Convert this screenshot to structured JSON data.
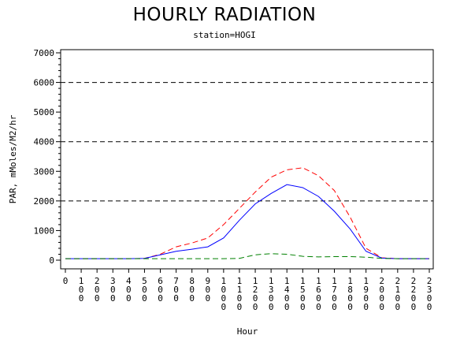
{
  "title": "HOURLY RADIATION",
  "subtitle": "station=HOGI",
  "chart_data": {
    "type": "line",
    "xlabel": "Hour",
    "ylabel": "PAR, mMoles/M2/hr",
    "xlim": [
      0,
      2300
    ],
    "ylim": [
      0,
      7000
    ],
    "yticks": [
      0,
      1000,
      2000,
      3000,
      4000,
      5000,
      6000,
      7000
    ],
    "xticks": [
      "0",
      "100",
      "200",
      "300",
      "400",
      "500",
      "600",
      "700",
      "800",
      "900",
      "1000",
      "1100",
      "1200",
      "1300",
      "1400",
      "1500",
      "1600",
      "1700",
      "1800",
      "1900",
      "2000",
      "2100",
      "2200",
      "2300"
    ],
    "reference_lines": [
      2000,
      4000,
      6000
    ],
    "x": [
      0,
      100,
      200,
      300,
      400,
      500,
      600,
      700,
      800,
      900,
      1000,
      1100,
      1200,
      1300,
      1400,
      1500,
      1600,
      1700,
      1800,
      1900,
      2000,
      2100,
      2200,
      2300
    ],
    "series": [
      {
        "color": "#ff0000",
        "dash": "dashed",
        "values": [
          50,
          50,
          50,
          50,
          50,
          60,
          200,
          450,
          580,
          750,
          1200,
          1750,
          2300,
          2800,
          3050,
          3120,
          2850,
          2350,
          1450,
          400,
          80,
          50,
          50,
          50
        ]
      },
      {
        "color": "#0000ff",
        "dash": "solid",
        "values": [
          50,
          50,
          50,
          50,
          50,
          60,
          180,
          300,
          370,
          450,
          750,
          1350,
          1900,
          2250,
          2550,
          2450,
          2150,
          1650,
          1050,
          300,
          70,
          50,
          50,
          50
        ]
      },
      {
        "color": "#008000",
        "dash": "dashed",
        "values": [
          50,
          50,
          50,
          50,
          50,
          50,
          50,
          50,
          50,
          50,
          50,
          60,
          180,
          220,
          200,
          130,
          110,
          120,
          120,
          100,
          60,
          50,
          50,
          50
        ]
      }
    ]
  }
}
